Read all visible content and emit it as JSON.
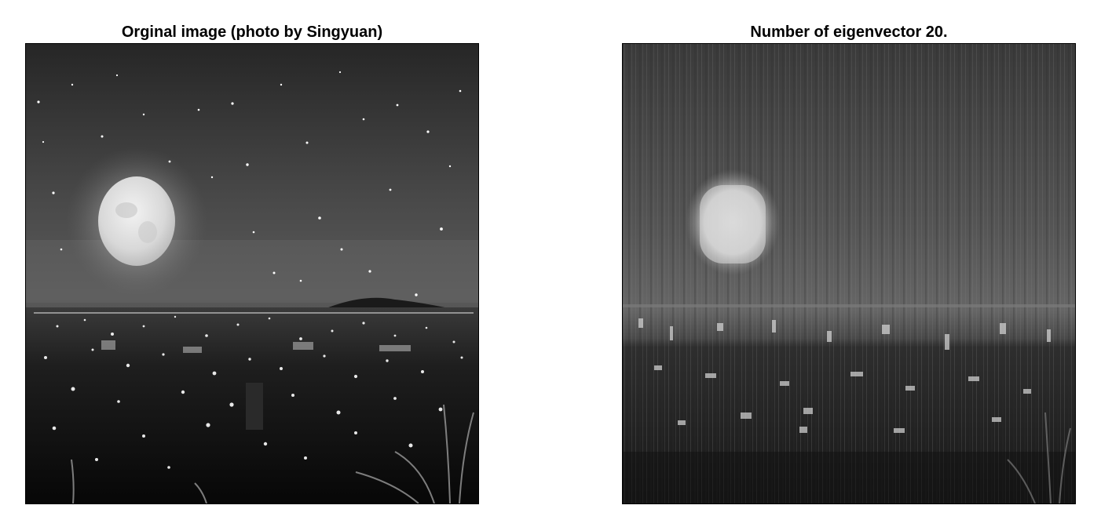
{
  "panels": {
    "left": {
      "title": "Orginal image (photo by Singyuan)",
      "image": "grayscale night cityscape with bright full moon and stars"
    },
    "right": {
      "title": "Number of eigenvector 20.",
      "image": "low-rank eigenvector reconstruction of the same night cityscape"
    }
  },
  "colors": {
    "background": "#ffffff",
    "border": "#000000",
    "title": "#000000"
  }
}
